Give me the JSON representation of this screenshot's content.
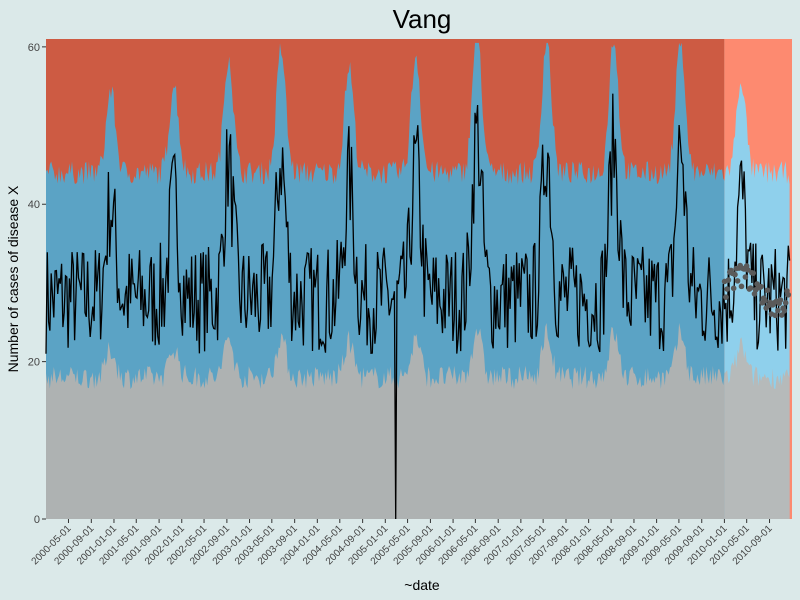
{
  "chart_data": {
    "type": "line",
    "title": "Vang",
    "xlabel": "~date",
    "ylabel": "Number of cases of disease X",
    "xlim": [
      "2000-01-01",
      "2010-12-31"
    ],
    "ylim": [
      0,
      61
    ],
    "yticks": [
      0,
      20,
      40,
      60
    ],
    "xtick_labels": [
      "2000-05-01",
      "2000-09-01",
      "2001-01-01",
      "2001-05-01",
      "2001-09-01",
      "2002-01-01",
      "2002-05-01",
      "2002-09-01",
      "2003-01-01",
      "2003-05-01",
      "2003-09-01",
      "2004-01-01",
      "2004-05-01",
      "2004-09-01",
      "2005-01-01",
      "2005-05-01",
      "2005-09-01",
      "2006-01-01",
      "2006-05-01",
      "2006-09-01",
      "2007-01-01",
      "2007-05-01",
      "2007-09-01",
      "2008-01-01",
      "2008-05-01",
      "2008-09-01",
      "2009-01-01",
      "2009-05-01",
      "2009-09-01",
      "2010-01-01",
      "2010-05-01",
      "2010-09-01"
    ],
    "forecast_start": "2010-01-01",
    "series_desc": {
      "observed": "weekly case counts (black line)",
      "forecast": "2010 forecast points (grey dots)",
      "bands": "lower band (grey), central band (blue), upper band (red); lighter colors in forecast period"
    },
    "band_lower_base": 20,
    "band_upper_base": 44,
    "seasonal_peaks": [
      {
        "date": "2000-12-15",
        "value": 46
      },
      {
        "date": "2001-11-20",
        "value": 47
      },
      {
        "date": "2002-09-10",
        "value": 52
      },
      {
        "date": "2003-06-20",
        "value": 53
      },
      {
        "date": "2004-06-20",
        "value": 50
      },
      {
        "date": "2005-06-15",
        "value": 52
      },
      {
        "date": "2006-05-10",
        "value": 57
      },
      {
        "date": "2007-05-20",
        "value": 55
      },
      {
        "date": "2008-05-15",
        "value": 55
      },
      {
        "date": "2009-05-10",
        "value": 55
      },
      {
        "date": "2010-04-01",
        "value": 48
      }
    ],
    "anomaly": {
      "date": "2005-03-01",
      "value": 0
    }
  },
  "colors": {
    "background": "#dbe9e9",
    "band_low": "#aeb2b2",
    "band_mid": "#5ba3c5",
    "band_high": "#cd5b43",
    "band_low_forecast": "#b6baba",
    "band_mid_forecast": "#8fd0ec",
    "band_high_forecast": "#fd8a70",
    "line": "#000000",
    "forecast_points": "#5a5a5a"
  }
}
